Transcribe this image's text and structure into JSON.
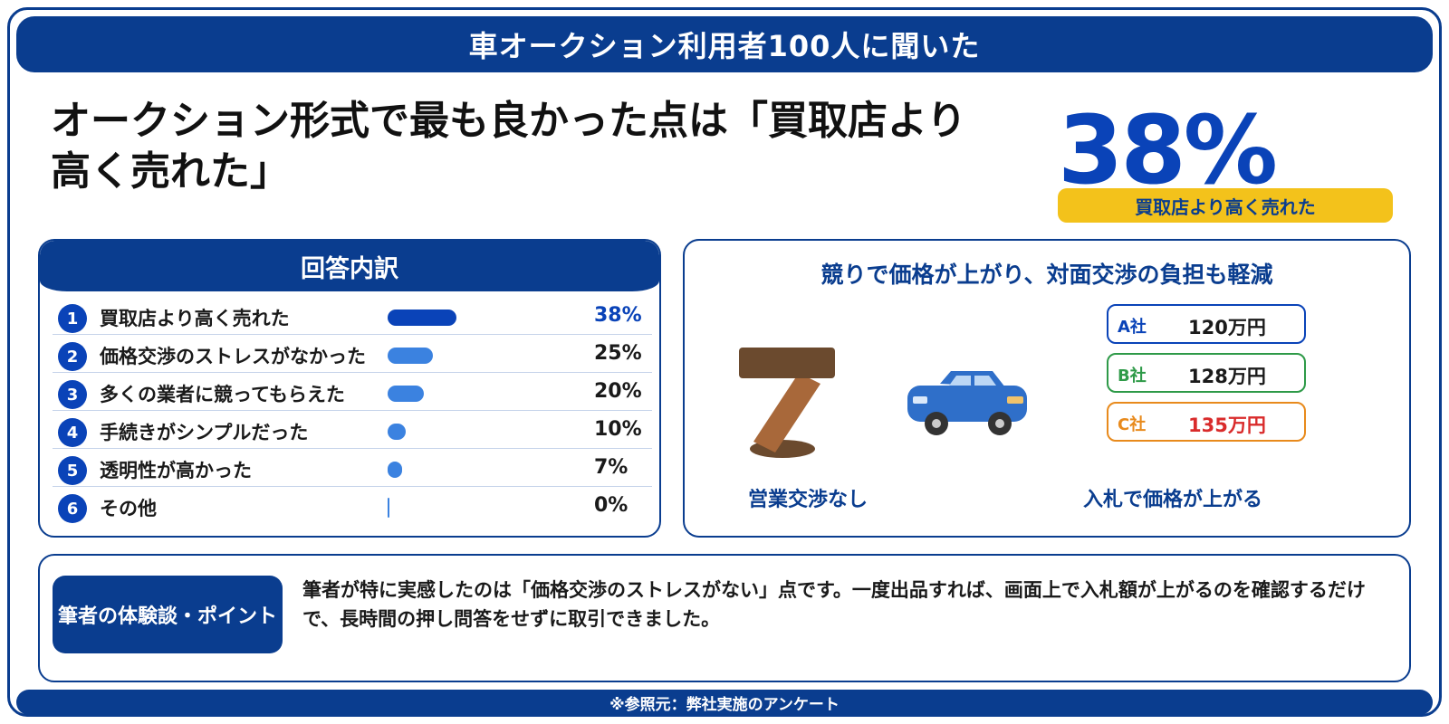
{
  "banner": {
    "title": "車オークション利用者100人に聞いた"
  },
  "headline": {
    "line1": "オークション形式で最も良かった点は「買取店より",
    "line2": "高く売れた」"
  },
  "highlight": {
    "value": "38%",
    "caption": "買取店より高く売れた"
  },
  "breakdown": {
    "title": "回答内訳"
  },
  "chart_data": {
    "type": "bar",
    "title": "回答内訳",
    "categories": [
      "買取店より高く売れた",
      "価格交渉のストレスがなかった",
      "多くの業者に競ってもらえた",
      "手続きがシンプルだった",
      "透明性が高かった",
      "その他"
    ],
    "values": [
      38,
      25,
      20,
      10,
      7,
      0
    ],
    "value_labels": [
      "38%",
      "25%",
      "20%",
      "10%",
      "7%",
      "0%"
    ],
    "ranks": [
      "1",
      "2",
      "3",
      "4",
      "5",
      "6"
    ],
    "unit": "%",
    "xlim": [
      0,
      100
    ],
    "colors": {
      "top": "#0a43b8",
      "other": "#3b82e0"
    }
  },
  "auction": {
    "title": "競りで価格が上がり、対面交渉の負担も軽減",
    "left_caption": "営業交渉なし",
    "right_caption": "入札で価格が上がる",
    "bids": [
      {
        "company": "A社",
        "amount": "120万円",
        "color": "#0a43b8"
      },
      {
        "company": "B社",
        "amount": "128万円",
        "color": "#2e9a48"
      },
      {
        "company": "C社",
        "amount": "135万円",
        "color": "#e88a1c"
      }
    ]
  },
  "experience": {
    "badge": "筆者の体験談・ポイント",
    "text": "筆者が特に実感したのは「価格交渉のストレスがない」点です。一度出品すれば、画面上で入札額が上がるのを確認するだけで、長時間の押し問答をせずに取引できました。"
  },
  "footer": {
    "source": "※参照元：弊社実施のアンケート"
  }
}
